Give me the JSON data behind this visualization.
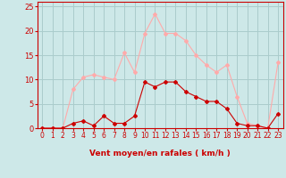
{
  "x": [
    0,
    1,
    2,
    3,
    4,
    5,
    6,
    7,
    8,
    9,
    10,
    11,
    12,
    13,
    14,
    15,
    16,
    17,
    18,
    19,
    20,
    21,
    22,
    23
  ],
  "rafales": [
    0,
    0,
    0,
    8,
    10.5,
    11,
    10.5,
    10,
    15.5,
    11.5,
    19.5,
    23.5,
    19.5,
    19.5,
    18,
    15,
    13,
    11.5,
    13,
    6.5,
    1,
    0.5,
    0,
    13.5
  ],
  "moyen": [
    0,
    0,
    0,
    1,
    1.5,
    0.5,
    2.5,
    1,
    1,
    2.5,
    9.5,
    8.5,
    9.5,
    9.5,
    7.5,
    6.5,
    5.5,
    5.5,
    4,
    1,
    0.5,
    0.5,
    0,
    3
  ],
  "bg_color": "#cde8e8",
  "grid_color": "#aacccc",
  "line_color_rafales": "#ffaaaa",
  "line_color_moyen": "#cc0000",
  "xlabel": "Vent moyen/en rafales ( km/h )",
  "ylim": [
    0,
    26
  ],
  "xlim": [
    -0.5,
    23.5
  ],
  "yticks": [
    0,
    5,
    10,
    15,
    20,
    25
  ],
  "xticks": [
    0,
    1,
    2,
    3,
    4,
    5,
    6,
    7,
    8,
    9,
    10,
    11,
    12,
    13,
    14,
    15,
    16,
    17,
    18,
    19,
    20,
    21,
    22,
    23
  ]
}
